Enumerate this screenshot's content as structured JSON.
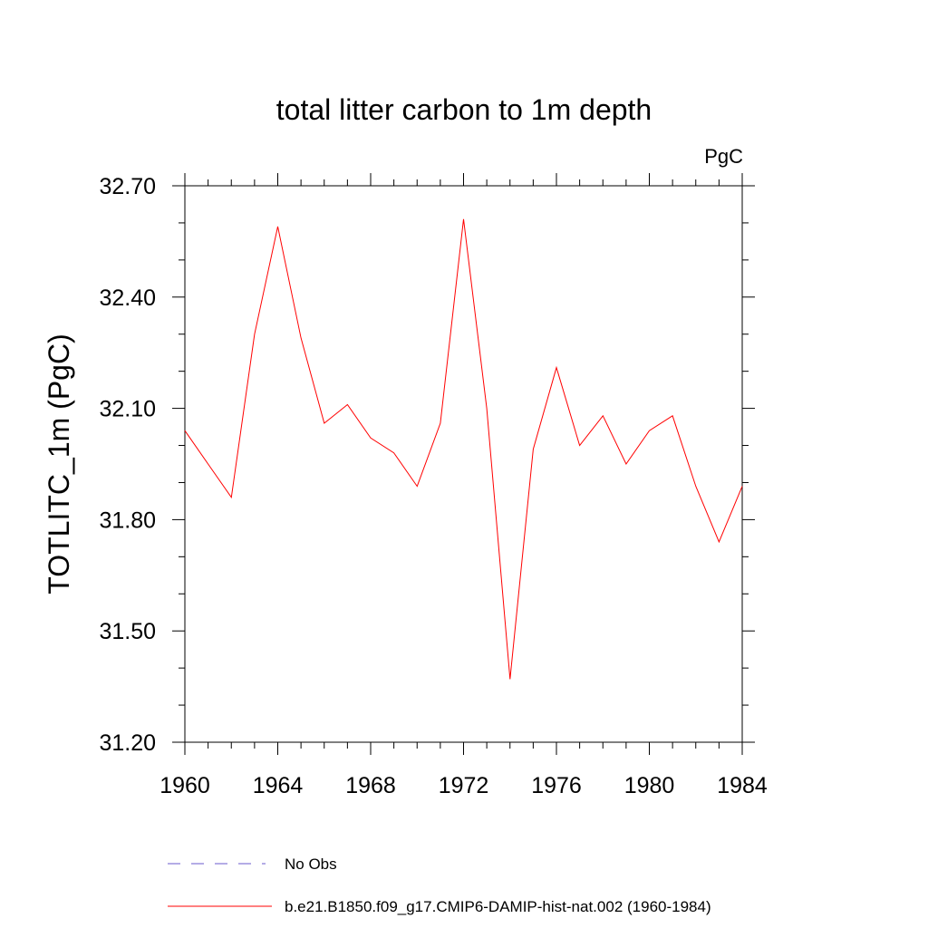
{
  "chart_data": {
    "type": "line",
    "title": "total litter carbon to 1m depth",
    "units": "PgC",
    "ylabel": "TOTLITC_1m  (PgC)",
    "xlabel": "",
    "xlim": [
      1960,
      1984
    ],
    "ylim": [
      31.2,
      32.7
    ],
    "x_major_ticks": [
      1960,
      1964,
      1968,
      1972,
      1976,
      1980,
      1984
    ],
    "x_tick_labels": [
      "1960",
      "1964",
      "1968",
      "1972",
      "1976",
      "1980",
      "1984"
    ],
    "x_minor_step": 1,
    "y_major_ticks": [
      31.2,
      31.5,
      31.8,
      32.1,
      32.4,
      32.7
    ],
    "y_tick_labels": [
      "31.20",
      "31.50",
      "31.80",
      "32.10",
      "32.40",
      "32.70"
    ],
    "y_minor_step": 0.1,
    "grid": false,
    "legend_position": "bottom",
    "series": [
      {
        "name": "b.e21.B1850.f09_g17.CMIP6-DAMIP-hist-nat.002 (1960-1984)",
        "color": "#ff0000",
        "style": "solid",
        "x": [
          1960,
          1961,
          1962,
          1963,
          1964,
          1965,
          1966,
          1967,
          1968,
          1969,
          1970,
          1971,
          1972,
          1973,
          1974,
          1975,
          1976,
          1977,
          1978,
          1979,
          1980,
          1981,
          1982,
          1983,
          1984
        ],
        "y": [
          32.04,
          31.95,
          31.86,
          32.3,
          32.59,
          32.29,
          32.06,
          32.11,
          32.02,
          31.98,
          31.89,
          32.06,
          32.61,
          32.1,
          31.37,
          31.99,
          32.21,
          32.0,
          32.08,
          31.95,
          32.04,
          32.08,
          31.89,
          31.74,
          31.89
        ]
      }
    ],
    "legend": [
      {
        "label": "No Obs",
        "color": "#6a5acd",
        "style": "dashed"
      },
      {
        "label": "b.e21.B1850.f09_g17.CMIP6-DAMIP-hist-nat.002 (1960-1984)",
        "color": "#ff0000",
        "style": "solid"
      }
    ]
  }
}
